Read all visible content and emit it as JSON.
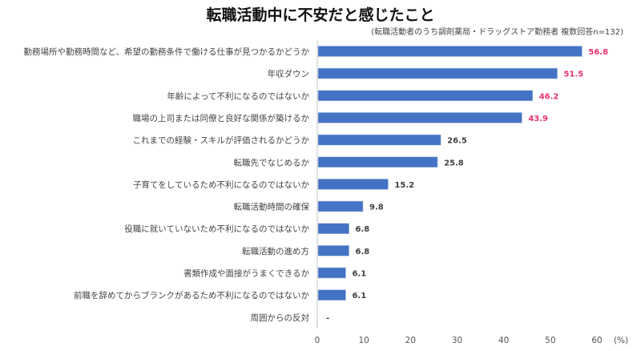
{
  "chart_data": {
    "type": "bar",
    "orientation": "horizontal",
    "title": "転職活動中に不安だと感じたこと",
    "subtitle": "(転職活動者のうち調剤薬局・ドラッグストア勤務者 複数回答n=132)",
    "categories": [
      "勤務場所や勤務時間など、希望の勤務条件で働ける仕事が見つかるかどうか",
      "年収ダウン",
      "年齢によって不利になるのではないか",
      "職場の上司または同僚と良好な関係が築けるか",
      "これまでの経験・スキルが評価されるかどうか",
      "転職先でなじめるか",
      "子育てをしているため不利になるのではないか",
      "転職活動時間の確保",
      "役職に就いていないため不利になるのではないか",
      "転職活動の進め方",
      "書類作成や面接がうまくできるか",
      "前職を辞めてからブランクがあるため不利になるのではないか",
      "周囲からの反対"
    ],
    "values": [
      56.8,
      51.5,
      46.2,
      43.9,
      26.5,
      25.8,
      15.2,
      9.8,
      6.8,
      6.8,
      6.1,
      6.1,
      null
    ],
    "data_labels": [
      "56.8",
      "51.5",
      "46.2",
      "43.9",
      "26.5",
      "25.8",
      "15.2",
      "9.8",
      "6.8",
      "6.8",
      "6.1",
      "6.1",
      "-"
    ],
    "highlighted_count": 4,
    "xlabel": "(%)",
    "xlim": [
      0,
      60
    ],
    "xticks": [
      "0",
      "10",
      "20",
      "30",
      "40",
      "50",
      "60"
    ],
    "grid": false,
    "bar_color": "#4472c4",
    "highlight_label_color": "#e8336e",
    "label_color": "#404040"
  }
}
